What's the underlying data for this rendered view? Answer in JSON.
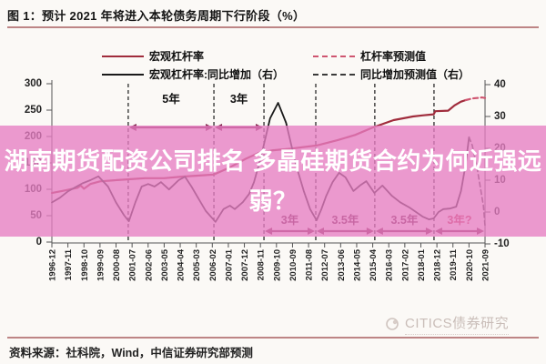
{
  "figure": {
    "title": "图 1：预计 2021 年将进入本轮债务周期下行阶段（%）",
    "source": "资料来源：社科院，Wind，中信证券研究部预测",
    "watermark": "CITICS债券研究",
    "accent_rule_color": "#bd8585"
  },
  "overlay": {
    "headline": "湖南期货配资公司排名 多晶硅期货合约为何近强远弱？",
    "band_color": "rgba(231,126,195,0.78)",
    "text_color": "#ffffff"
  },
  "legend": {
    "items": [
      {
        "label": "宏观杠杆率",
        "line": "solid",
        "color": "#a02c3c"
      },
      {
        "label": "杠杆率预测值",
        "line": "dashed",
        "color": "#cf5570"
      },
      {
        "label": "宏观杠杆率:同比增加（右）",
        "line": "solid",
        "color": "#1a1a1a"
      },
      {
        "label": "同比增加预测值（右）",
        "line": "dashed",
        "color": "#3a3a3a"
      }
    ]
  },
  "chart_data": {
    "type": "line",
    "title": "预计 2021 年将进入本轮债务周期下行阶段（%）",
    "x_tick_labels": [
      "1996-12",
      "1997-11",
      "1998-10",
      "1999-09",
      "2000-08",
      "2001-07",
      "2002-06",
      "2003-05",
      "2004-04",
      "2005-03",
      "2006-02",
      "2007-01",
      "2007-12",
      "2008-11",
      "2009-10",
      "2010-09",
      "2011-08",
      "2012-07",
      "2013-06",
      "2014-05",
      "2015-04",
      "2016-03",
      "2017-02",
      "2018-01",
      "2018-12",
      "2019-11",
      "2020-10",
      "2021-09"
    ],
    "left_axis": {
      "ticks": [
        0,
        50,
        100,
        150,
        200,
        250,
        300
      ],
      "range": [
        0,
        300
      ]
    },
    "right_axis": {
      "ticks": [
        -10,
        0,
        10,
        20,
        30,
        40
      ],
      "range": [
        -10,
        40
      ]
    },
    "grid": false,
    "legend_position": "top",
    "dividers_x": [
      4.76,
      10.1,
      13.22,
      16.45,
      20.13,
      23.82
    ],
    "arrow_color": "#7a2045",
    "spans": [
      {
        "label": "5年",
        "from": 4.76,
        "to": 10.1,
        "pos": "top",
        "label_color": "#111111"
      },
      {
        "label": "3年",
        "from": 10.1,
        "to": 13.22,
        "pos": "top",
        "label_color": "#111111"
      },
      {
        "label": "3年",
        "from": 13.22,
        "to": 16.45,
        "pos": "bottom",
        "label_color": "#5c1535"
      },
      {
        "label": "3.5年",
        "from": 16.45,
        "to": 20.13,
        "pos": "bottom",
        "label_color": "#5c1535"
      },
      {
        "label": "3.5年",
        "from": 20.13,
        "to": 23.82,
        "pos": "bottom",
        "label_color": "#5c1535"
      },
      {
        "label": "3年?",
        "from": 23.82,
        "to": 27,
        "pos": "bottom",
        "label_color": "#c03048"
      }
    ],
    "series": [
      {
        "name": "宏观杠杆率",
        "axis": "left",
        "dash": false,
        "color": "#a02c3c",
        "width": 2.2,
        "points": [
          [
            0,
            93
          ],
          [
            0.7,
            97
          ],
          [
            1.6,
            103
          ],
          [
            1.8,
            107
          ],
          [
            2.0,
            101
          ],
          [
            2.4,
            110
          ],
          [
            3.0,
            115
          ],
          [
            3.9,
            117
          ],
          [
            4.8,
            119
          ],
          [
            5.8,
            121
          ],
          [
            7.0,
            121
          ],
          [
            8.1,
            124
          ],
          [
            9.2,
            126
          ],
          [
            10.1,
            128
          ],
          [
            11.0,
            140
          ],
          [
            12.1,
            158
          ],
          [
            12.9,
            169
          ],
          [
            13.8,
            174
          ],
          [
            14.9,
            177
          ],
          [
            16.5,
            183
          ],
          [
            17.8,
            193
          ],
          [
            18.9,
            203
          ],
          [
            20.0,
            217
          ],
          [
            21.3,
            231
          ],
          [
            22.5,
            238
          ],
          [
            23.1,
            240
          ],
          [
            23.8,
            242
          ],
          [
            23.9,
            248
          ],
          [
            24.7,
            249
          ],
          [
            25.1,
            259
          ],
          [
            25.5,
            266
          ],
          [
            25.8,
            269
          ]
        ]
      },
      {
        "name": "杠杆率预测值",
        "axis": "left",
        "dash": true,
        "color": "#cf5570",
        "width": 2.2,
        "points": [
          [
            25.8,
            269
          ],
          [
            26.2,
            272
          ],
          [
            26.5,
            273
          ],
          [
            26.8,
            274
          ],
          [
            27,
            273
          ]
        ]
      },
      {
        "name": "宏观杠杆率:同比增加（右）",
        "axis": "right",
        "dash": false,
        "color": "#1a1a1a",
        "width": 1.8,
        "points": [
          [
            0,
            3
          ],
          [
            0.5,
            4.5
          ],
          [
            1.0,
            6.5
          ],
          [
            1.9,
            9
          ],
          [
            2.4,
            10
          ],
          [
            2.9,
            11.2
          ],
          [
            3.5,
            8
          ],
          [
            4.0,
            3
          ],
          [
            4.5,
            -1
          ],
          [
            4.8,
            -2.9
          ],
          [
            5.2,
            3
          ],
          [
            5.6,
            8
          ],
          [
            6.0,
            8.8
          ],
          [
            6.4,
            8
          ],
          [
            6.8,
            9.4
          ],
          [
            7.3,
            7.1
          ],
          [
            7.9,
            10
          ],
          [
            8.3,
            11.1
          ],
          [
            8.7,
            8
          ],
          [
            9.2,
            3.7
          ],
          [
            9.6,
            0.3
          ],
          [
            10.2,
            -3.1
          ],
          [
            10.7,
            0.9
          ],
          [
            11.1,
            2
          ],
          [
            11.4,
            0.9
          ],
          [
            11.9,
            3.1
          ],
          [
            12.3,
            5.7
          ],
          [
            12.6,
            9.4
          ],
          [
            13.0,
            16.6
          ],
          [
            13.6,
            29.4
          ],
          [
            14.1,
            34.3
          ],
          [
            14.6,
            28
          ],
          [
            15.2,
            15.1
          ],
          [
            15.7,
            6.6
          ],
          [
            16.1,
            0.9
          ],
          [
            16.5,
            -2.6
          ],
          [
            16.8,
            0.9
          ],
          [
            17.1,
            5.1
          ],
          [
            17.5,
            9.4
          ],
          [
            17.9,
            12.3
          ],
          [
            18.3,
            10.9
          ],
          [
            18.8,
            6.6
          ],
          [
            19.2,
            8.3
          ],
          [
            19.6,
            9.7
          ],
          [
            20.1,
            6
          ],
          [
            20.6,
            8.3
          ],
          [
            21.2,
            5.1
          ],
          [
            21.7,
            3.1
          ],
          [
            22.3,
            1.4
          ],
          [
            22.7,
            0
          ],
          [
            23.1,
            -1.4
          ],
          [
            23.5,
            -2.3
          ],
          [
            23.8,
            -2
          ],
          [
            24.1,
            0
          ],
          [
            24.4,
            0.9
          ],
          [
            24.8,
            1.1
          ],
          [
            25.2,
            1.7
          ],
          [
            25.5,
            6.6
          ],
          [
            25.8,
            15.1
          ],
          [
            26.0,
            23.5
          ]
        ]
      },
      {
        "name": "同比增加预测值（右）",
        "axis": "right",
        "dash": true,
        "color": "#3a3a3a",
        "width": 1.6,
        "points": [
          [
            26.0,
            23.5
          ],
          [
            26.2,
            21
          ],
          [
            26.5,
            14
          ],
          [
            26.7,
            8
          ],
          [
            26.9,
            2
          ],
          [
            27,
            -4.3
          ]
        ]
      }
    ]
  }
}
